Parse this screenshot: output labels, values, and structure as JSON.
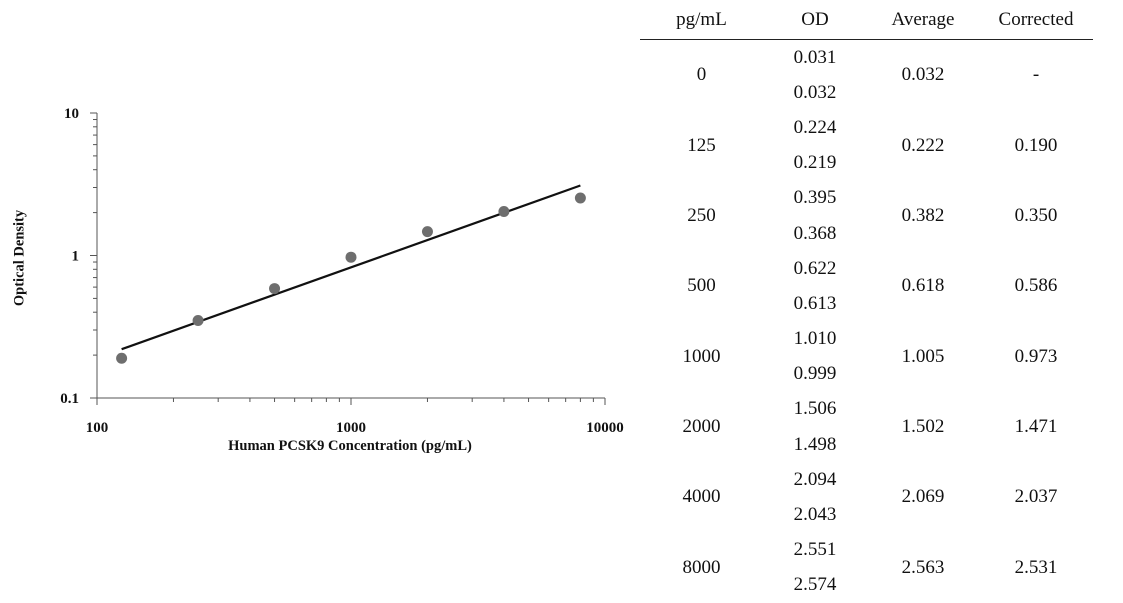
{
  "chart_data": {
    "type": "scatter",
    "xlabel": "Human PCSK9 Concentration (pg/mL)",
    "ylabel": "Optical Density",
    "x_scale": "log",
    "y_scale": "log",
    "xlim": [
      100,
      10000
    ],
    "ylim": [
      0.1,
      10
    ],
    "x_ticks": [
      "100",
      "1000",
      "10000"
    ],
    "y_ticks": [
      "0.1",
      "1",
      "10"
    ],
    "grid": false,
    "legend": "none",
    "points": [
      {
        "x": 125,
        "y": 0.19
      },
      {
        "x": 250,
        "y": 0.35
      },
      {
        "x": 500,
        "y": 0.586
      },
      {
        "x": 1000,
        "y": 0.973
      },
      {
        "x": 2000,
        "y": 1.471
      },
      {
        "x": 4000,
        "y": 2.037
      },
      {
        "x": 8000,
        "y": 2.531
      }
    ],
    "trendline": {
      "type": "power",
      "x": [
        125,
        8000
      ],
      "y": [
        0.22,
        3.1
      ]
    },
    "point_color": "#6e6e6e",
    "line_color": "#111111"
  },
  "table": {
    "headers": [
      "pg/mL",
      "OD",
      "Average",
      "Corrected"
    ],
    "rows": [
      {
        "conc": "0",
        "od": [
          "0.031",
          "0.032"
        ],
        "average": "0.032",
        "corrected": "-"
      },
      {
        "conc": "125",
        "od": [
          "0.224",
          "0.219"
        ],
        "average": "0.222",
        "corrected": "0.190"
      },
      {
        "conc": "250",
        "od": [
          "0.395",
          "0.368"
        ],
        "average": "0.382",
        "corrected": "0.350"
      },
      {
        "conc": "500",
        "od": [
          "0.622",
          "0.613"
        ],
        "average": "0.618",
        "corrected": "0.586"
      },
      {
        "conc": "1000",
        "od": [
          "1.010",
          "0.999"
        ],
        "average": "1.005",
        "corrected": "0.973"
      },
      {
        "conc": "2000",
        "od": [
          "1.506",
          "1.498"
        ],
        "average": "1.502",
        "corrected": "1.471"
      },
      {
        "conc": "4000",
        "od": [
          "2.094",
          "2.043"
        ],
        "average": "2.069",
        "corrected": "2.037"
      },
      {
        "conc": "8000",
        "od": [
          "2.551",
          "2.574"
        ],
        "average": "2.563",
        "corrected": "2.531"
      }
    ]
  }
}
